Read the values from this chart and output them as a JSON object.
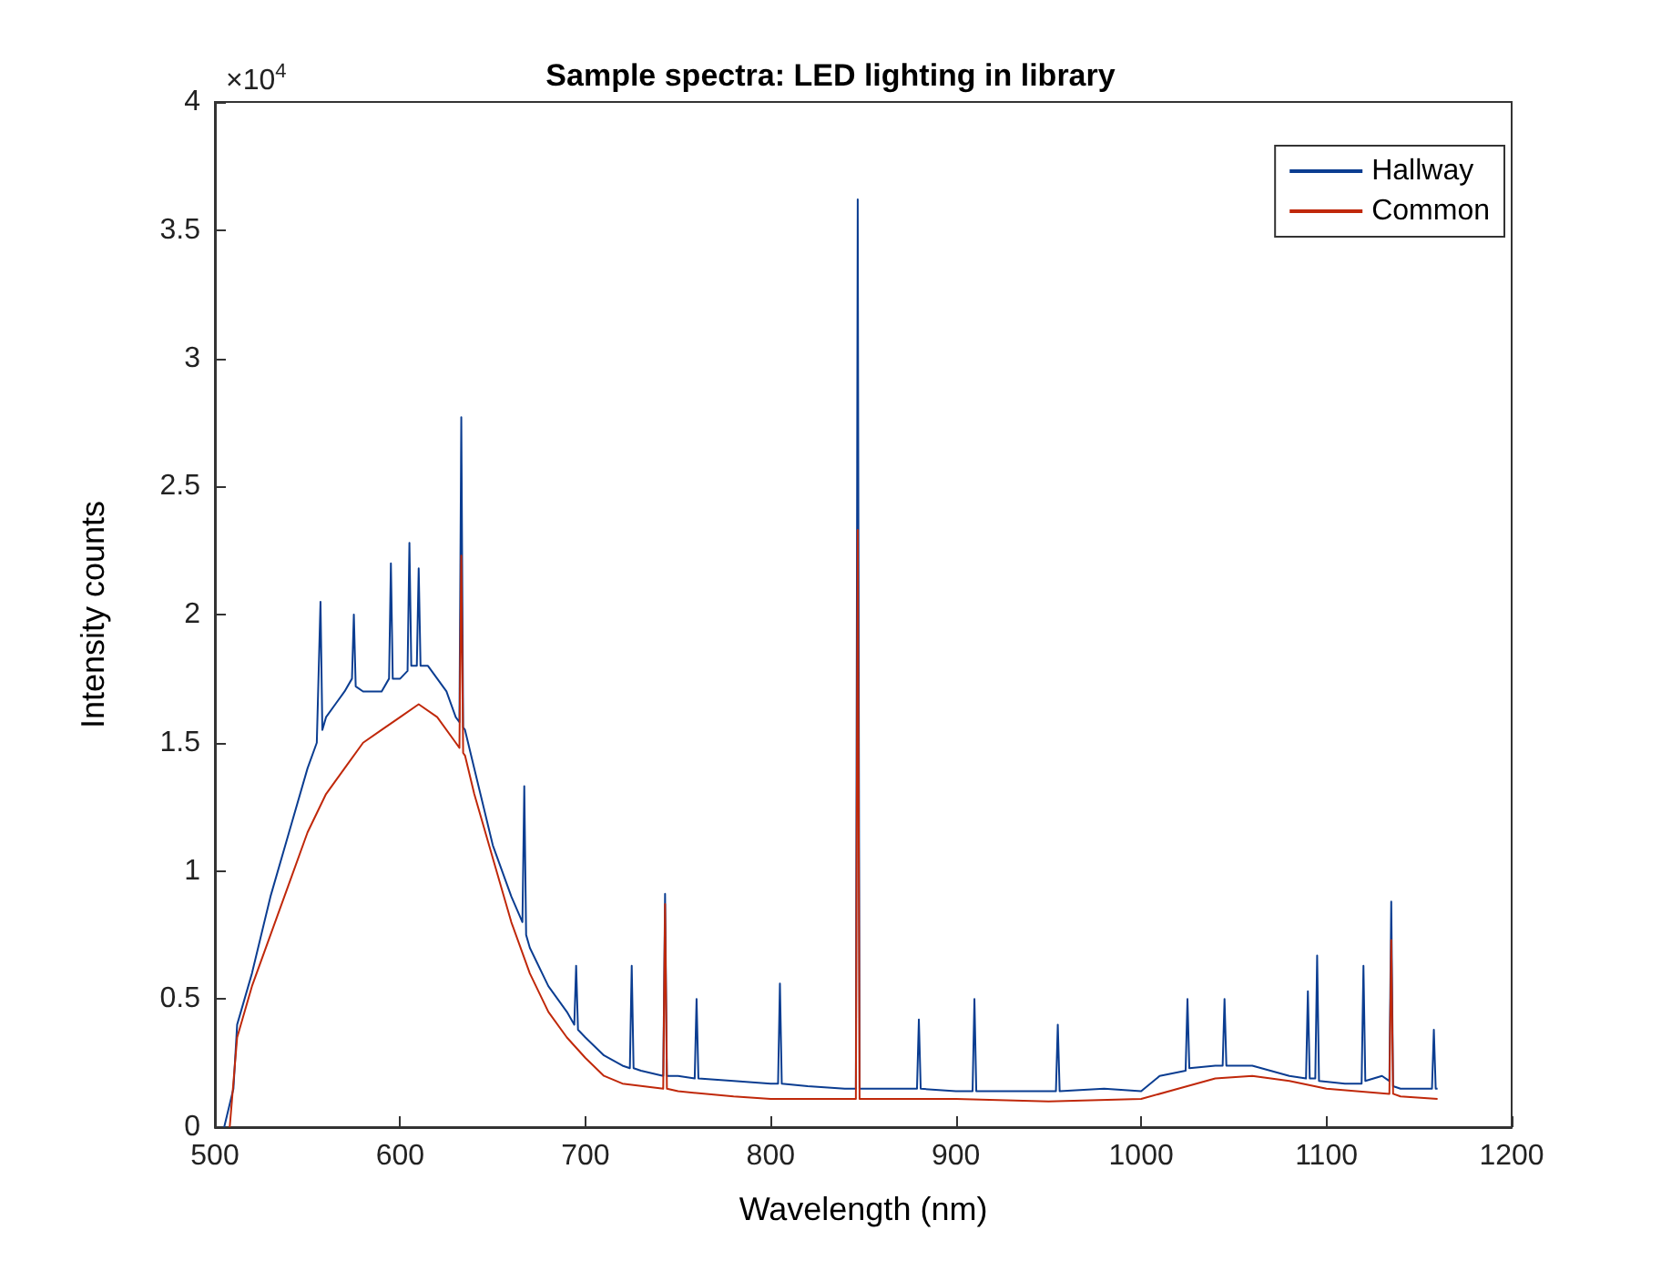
{
  "chart_data": {
    "type": "line",
    "title": "Sample spectra: LED lighting in library",
    "xlabel": "Wavelength (nm)",
    "ylabel": "Intensity counts",
    "annotations": [
      "×10$^{4}$"
    ],
    "xlim": [
      500,
      1200
    ],
    "xticks": [
      500,
      600,
      700,
      800,
      900,
      1000,
      1100,
      1200
    ],
    "ylim": [
      0,
      4
    ],
    "yticks": [
      0,
      0.5,
      1,
      1.5,
      2,
      2.5,
      3,
      3.5,
      4
    ],
    "grid": false,
    "legend": "top right",
    "marker": "none",
    "line_style": "solid",
    "series": [
      {
        "name": "Hallway",
        "color": "#0b3d91",
        "x": [
          505,
          510,
          512,
          520,
          530,
          540,
          550,
          555,
          557,
          558,
          560,
          565,
          570,
          574,
          575,
          576,
          580,
          590,
          594,
          595,
          596,
          600,
          604,
          605,
          606,
          609,
          610,
          611,
          615,
          620,
          625,
          630,
          632,
          633,
          634,
          635,
          640,
          650,
          660,
          666,
          667,
          668,
          670,
          680,
          690,
          694,
          695,
          696,
          700,
          710,
          720,
          724,
          725,
          726,
          730,
          742,
          743,
          744,
          750,
          759,
          760,
          761,
          780,
          800,
          804,
          805,
          806,
          820,
          840,
          846,
          847,
          848,
          850,
          870,
          879,
          880,
          881,
          900,
          909,
          910,
          911,
          930,
          954,
          955,
          956,
          980,
          1000,
          1010,
          1024,
          1025,
          1026,
          1040,
          1044,
          1045,
          1046,
          1060,
          1080,
          1089,
          1090,
          1091,
          1094,
          1095,
          1096,
          1110,
          1119,
          1120,
          1121,
          1130,
          1134,
          1135,
          1136,
          1140,
          1155,
          1157,
          1158,
          1159,
          1160
        ],
        "values": [
          0,
          0.15,
          0.4,
          0.6,
          0.9,
          1.15,
          1.4,
          1.5,
          2.05,
          1.55,
          1.6,
          1.65,
          1.7,
          1.75,
          2.0,
          1.72,
          1.7,
          1.7,
          1.75,
          2.2,
          1.75,
          1.75,
          1.78,
          2.28,
          1.8,
          1.8,
          2.18,
          1.8,
          1.8,
          1.75,
          1.7,
          1.6,
          1.58,
          2.77,
          1.56,
          1.55,
          1.4,
          1.1,
          0.9,
          0.8,
          1.33,
          0.75,
          0.7,
          0.55,
          0.45,
          0.4,
          0.63,
          0.38,
          0.35,
          0.28,
          0.24,
          0.23,
          0.63,
          0.23,
          0.22,
          0.2,
          0.91,
          0.2,
          0.2,
          0.19,
          0.5,
          0.19,
          0.18,
          0.17,
          0.17,
          0.56,
          0.17,
          0.16,
          0.15,
          0.15,
          3.62,
          0.15,
          0.15,
          0.15,
          0.15,
          0.42,
          0.15,
          0.14,
          0.14,
          0.5,
          0.14,
          0.14,
          0.14,
          0.4,
          0.14,
          0.15,
          0.14,
          0.2,
          0.22,
          0.5,
          0.23,
          0.24,
          0.24,
          0.5,
          0.24,
          0.24,
          0.2,
          0.19,
          0.53,
          0.19,
          0.19,
          0.67,
          0.18,
          0.17,
          0.17,
          0.63,
          0.18,
          0.2,
          0.18,
          0.88,
          0.16,
          0.15,
          0.15,
          0.15,
          0.38,
          0.15,
          0.15
        ]
      },
      {
        "name": "Common",
        "color": "#c0280a",
        "x": [
          508,
          512,
          520,
          530,
          540,
          550,
          560,
          570,
          580,
          590,
          600,
          610,
          620,
          630,
          632,
          633,
          634,
          635,
          640,
          650,
          660,
          670,
          680,
          690,
          700,
          710,
          720,
          742,
          743,
          744,
          750,
          780,
          800,
          846,
          847,
          848,
          850,
          900,
          950,
          1000,
          1020,
          1040,
          1060,
          1080,
          1100,
          1134,
          1135,
          1136,
          1140,
          1160
        ],
        "values": [
          0,
          0.35,
          0.55,
          0.75,
          0.95,
          1.15,
          1.3,
          1.4,
          1.5,
          1.55,
          1.6,
          1.65,
          1.6,
          1.5,
          1.48,
          2.23,
          1.46,
          1.45,
          1.3,
          1.05,
          0.8,
          0.6,
          0.45,
          0.35,
          0.27,
          0.2,
          0.17,
          0.15,
          0.87,
          0.15,
          0.14,
          0.12,
          0.11,
          0.11,
          2.33,
          0.11,
          0.11,
          0.11,
          0.1,
          0.11,
          0.15,
          0.19,
          0.2,
          0.18,
          0.15,
          0.13,
          0.73,
          0.13,
          0.12,
          0.11
        ]
      }
    ]
  }
}
